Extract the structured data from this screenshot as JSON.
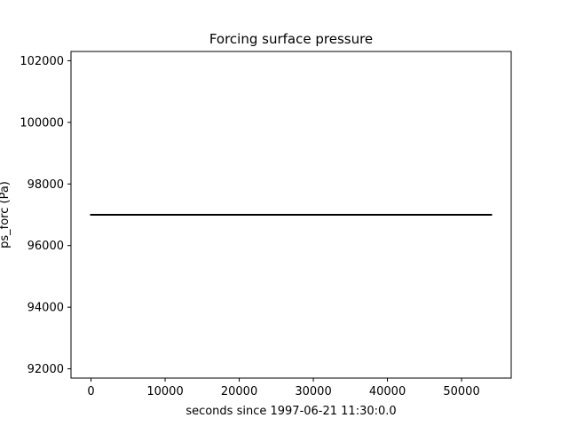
{
  "chart_data": {
    "type": "line",
    "title": "Forcing surface pressure",
    "xlabel": "seconds since 1997-06-21 11:30:0.0",
    "ylabel": "ps_forc (Pa)",
    "xlim": [
      -2700,
      56700
    ],
    "ylim": [
      91700,
      102300
    ],
    "xticks": [
      0,
      10000,
      20000,
      30000,
      40000,
      50000
    ],
    "yticks": [
      92000,
      94000,
      96000,
      98000,
      100000,
      102000
    ],
    "series": [
      {
        "x": [
          0,
          54000
        ],
        "y": [
          97000,
          97000
        ]
      }
    ],
    "grid": false,
    "colors": {
      "line": "#000000",
      "axes": "#000000",
      "background": "#ffffff"
    }
  }
}
